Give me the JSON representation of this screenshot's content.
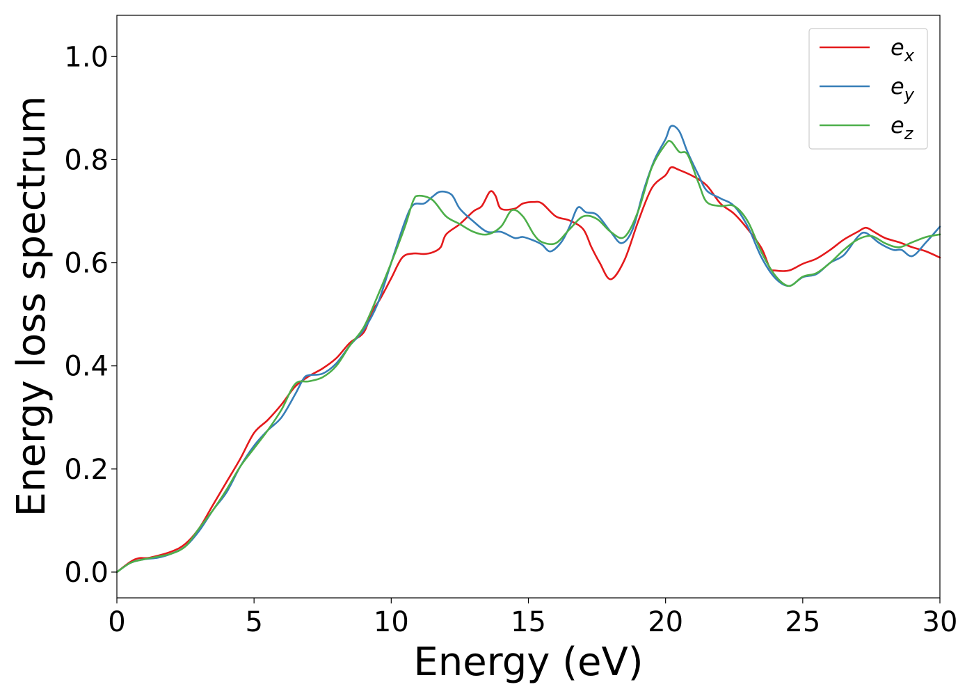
{
  "chart_data": {
    "type": "line",
    "xlabel": "Energy (eV)",
    "ylabel": "Energy loss spectrum",
    "xlim": [
      0,
      30
    ],
    "ylim": [
      -0.05,
      1.08
    ],
    "xticks": [
      0,
      5,
      10,
      15,
      20,
      25,
      30
    ],
    "xtick_labels": [
      "0",
      "5",
      "10",
      "15",
      "20",
      "25",
      "30"
    ],
    "yticks": [
      0.0,
      0.2,
      0.4,
      0.6,
      0.8,
      1.0
    ],
    "ytick_labels": [
      "0.0",
      "0.2",
      "0.4",
      "0.6",
      "0.8",
      "1.0"
    ],
    "grid": false,
    "legend_position": "top-right",
    "series": [
      {
        "name": "e_x",
        "label_base": "e",
        "label_sub": "x",
        "color": "#e41a1c",
        "points": [
          [
            0,
            0.0
          ],
          [
            0.5,
            0.02
          ],
          [
            0.8,
            0.027
          ],
          [
            1.2,
            0.028
          ],
          [
            2.0,
            0.04
          ],
          [
            2.5,
            0.055
          ],
          [
            3.0,
            0.085
          ],
          [
            3.5,
            0.13
          ],
          [
            4.0,
            0.175
          ],
          [
            4.5,
            0.22
          ],
          [
            5.0,
            0.27
          ],
          [
            5.5,
            0.295
          ],
          [
            6.0,
            0.325
          ],
          [
            6.5,
            0.36
          ],
          [
            7.0,
            0.38
          ],
          [
            7.5,
            0.395
          ],
          [
            8.0,
            0.415
          ],
          [
            8.5,
            0.445
          ],
          [
            9.0,
            0.465
          ],
          [
            9.3,
            0.505
          ],
          [
            9.6,
            0.53
          ],
          [
            10.0,
            0.57
          ],
          [
            10.4,
            0.61
          ],
          [
            10.8,
            0.618
          ],
          [
            11.2,
            0.617
          ],
          [
            11.5,
            0.62
          ],
          [
            11.8,
            0.63
          ],
          [
            12.0,
            0.655
          ],
          [
            12.5,
            0.675
          ],
          [
            13.0,
            0.7
          ],
          [
            13.3,
            0.71
          ],
          [
            13.6,
            0.738
          ],
          [
            13.8,
            0.73
          ],
          [
            14.0,
            0.705
          ],
          [
            14.5,
            0.705
          ],
          [
            14.8,
            0.715
          ],
          [
            15.2,
            0.718
          ],
          [
            15.5,
            0.715
          ],
          [
            16.0,
            0.69
          ],
          [
            16.5,
            0.682
          ],
          [
            17.0,
            0.665
          ],
          [
            17.3,
            0.63
          ],
          [
            17.6,
            0.6
          ],
          [
            18.0,
            0.568
          ],
          [
            18.5,
            0.605
          ],
          [
            19.0,
            0.68
          ],
          [
            19.5,
            0.745
          ],
          [
            20.0,
            0.77
          ],
          [
            20.2,
            0.785
          ],
          [
            20.5,
            0.78
          ],
          [
            21.0,
            0.768
          ],
          [
            21.5,
            0.75
          ],
          [
            22.0,
            0.715
          ],
          [
            22.5,
            0.695
          ],
          [
            23.0,
            0.665
          ],
          [
            23.5,
            0.628
          ],
          [
            23.8,
            0.59
          ],
          [
            24.0,
            0.585
          ],
          [
            24.5,
            0.585
          ],
          [
            25.0,
            0.598
          ],
          [
            25.5,
            0.608
          ],
          [
            26.0,
            0.625
          ],
          [
            26.5,
            0.645
          ],
          [
            27.0,
            0.66
          ],
          [
            27.3,
            0.668
          ],
          [
            27.6,
            0.66
          ],
          [
            28.0,
            0.648
          ],
          [
            28.5,
            0.64
          ],
          [
            29.0,
            0.63
          ],
          [
            29.5,
            0.622
          ],
          [
            30.0,
            0.61
          ]
        ]
      },
      {
        "name": "e_y",
        "label_base": "e",
        "label_sub": "y",
        "color": "#377eb8",
        "points": [
          [
            0,
            0.0
          ],
          [
            0.5,
            0.018
          ],
          [
            1.0,
            0.025
          ],
          [
            1.5,
            0.028
          ],
          [
            2.0,
            0.036
          ],
          [
            2.5,
            0.05
          ],
          [
            3.0,
            0.08
          ],
          [
            3.5,
            0.12
          ],
          [
            4.0,
            0.155
          ],
          [
            4.5,
            0.205
          ],
          [
            5.0,
            0.245
          ],
          [
            5.5,
            0.275
          ],
          [
            6.0,
            0.3
          ],
          [
            6.5,
            0.345
          ],
          [
            6.8,
            0.375
          ],
          [
            7.0,
            0.382
          ],
          [
            7.5,
            0.385
          ],
          [
            8.0,
            0.405
          ],
          [
            8.5,
            0.44
          ],
          [
            9.0,
            0.47
          ],
          [
            9.5,
            0.52
          ],
          [
            10.0,
            0.6
          ],
          [
            10.5,
            0.68
          ],
          [
            10.8,
            0.712
          ],
          [
            11.2,
            0.715
          ],
          [
            11.5,
            0.728
          ],
          [
            11.8,
            0.738
          ],
          [
            12.2,
            0.732
          ],
          [
            12.5,
            0.705
          ],
          [
            13.0,
            0.68
          ],
          [
            13.5,
            0.66
          ],
          [
            14.0,
            0.66
          ],
          [
            14.5,
            0.648
          ],
          [
            14.8,
            0.65
          ],
          [
            15.2,
            0.643
          ],
          [
            15.5,
            0.635
          ],
          [
            15.8,
            0.622
          ],
          [
            16.2,
            0.64
          ],
          [
            16.5,
            0.67
          ],
          [
            16.8,
            0.707
          ],
          [
            17.1,
            0.698
          ],
          [
            17.5,
            0.693
          ],
          [
            18.0,
            0.66
          ],
          [
            18.4,
            0.638
          ],
          [
            18.8,
            0.665
          ],
          [
            19.2,
            0.74
          ],
          [
            19.6,
            0.8
          ],
          [
            20.0,
            0.84
          ],
          [
            20.2,
            0.865
          ],
          [
            20.5,
            0.855
          ],
          [
            20.8,
            0.815
          ],
          [
            21.2,
            0.77
          ],
          [
            21.5,
            0.74
          ],
          [
            22.0,
            0.725
          ],
          [
            22.5,
            0.71
          ],
          [
            23.0,
            0.67
          ],
          [
            23.5,
            0.61
          ],
          [
            24.0,
            0.57
          ],
          [
            24.5,
            0.555
          ],
          [
            25.0,
            0.572
          ],
          [
            25.5,
            0.578
          ],
          [
            26.0,
            0.6
          ],
          [
            26.5,
            0.615
          ],
          [
            27.0,
            0.65
          ],
          [
            27.3,
            0.658
          ],
          [
            27.8,
            0.638
          ],
          [
            28.3,
            0.625
          ],
          [
            28.6,
            0.625
          ],
          [
            29.0,
            0.613
          ],
          [
            29.5,
            0.64
          ],
          [
            30.0,
            0.67
          ]
        ]
      },
      {
        "name": "e_z",
        "label_base": "e",
        "label_sub": "z",
        "color": "#4daf4a",
        "points": [
          [
            0,
            0.0
          ],
          [
            0.5,
            0.018
          ],
          [
            1.0,
            0.025
          ],
          [
            1.5,
            0.03
          ],
          [
            2.0,
            0.036
          ],
          [
            2.5,
            0.05
          ],
          [
            3.0,
            0.085
          ],
          [
            3.5,
            0.12
          ],
          [
            4.0,
            0.16
          ],
          [
            4.5,
            0.205
          ],
          [
            5.0,
            0.24
          ],
          [
            5.5,
            0.275
          ],
          [
            6.0,
            0.315
          ],
          [
            6.5,
            0.365
          ],
          [
            7.0,
            0.37
          ],
          [
            7.5,
            0.378
          ],
          [
            8.0,
            0.4
          ],
          [
            8.5,
            0.44
          ],
          [
            9.0,
            0.475
          ],
          [
            9.5,
            0.535
          ],
          [
            10.0,
            0.6
          ],
          [
            10.5,
            0.67
          ],
          [
            10.8,
            0.72
          ],
          [
            11.0,
            0.73
          ],
          [
            11.5,
            0.722
          ],
          [
            12.0,
            0.69
          ],
          [
            12.5,
            0.675
          ],
          [
            13.0,
            0.66
          ],
          [
            13.5,
            0.655
          ],
          [
            14.0,
            0.67
          ],
          [
            14.4,
            0.702
          ],
          [
            14.8,
            0.69
          ],
          [
            15.2,
            0.655
          ],
          [
            15.5,
            0.64
          ],
          [
            16.0,
            0.638
          ],
          [
            16.5,
            0.665
          ],
          [
            17.0,
            0.69
          ],
          [
            17.5,
            0.685
          ],
          [
            18.0,
            0.66
          ],
          [
            18.5,
            0.65
          ],
          [
            19.0,
            0.7
          ],
          [
            19.5,
            0.785
          ],
          [
            20.0,
            0.83
          ],
          [
            20.2,
            0.835
          ],
          [
            20.5,
            0.815
          ],
          [
            20.8,
            0.81
          ],
          [
            21.2,
            0.755
          ],
          [
            21.5,
            0.718
          ],
          [
            22.0,
            0.71
          ],
          [
            22.5,
            0.71
          ],
          [
            23.0,
            0.68
          ],
          [
            23.5,
            0.62
          ],
          [
            24.0,
            0.575
          ],
          [
            24.5,
            0.555
          ],
          [
            25.0,
            0.573
          ],
          [
            25.5,
            0.58
          ],
          [
            26.0,
            0.6
          ],
          [
            26.5,
            0.625
          ],
          [
            27.0,
            0.645
          ],
          [
            27.5,
            0.652
          ],
          [
            28.0,
            0.638
          ],
          [
            28.5,
            0.63
          ],
          [
            29.0,
            0.64
          ],
          [
            29.5,
            0.65
          ],
          [
            30.0,
            0.655
          ]
        ]
      }
    ]
  }
}
